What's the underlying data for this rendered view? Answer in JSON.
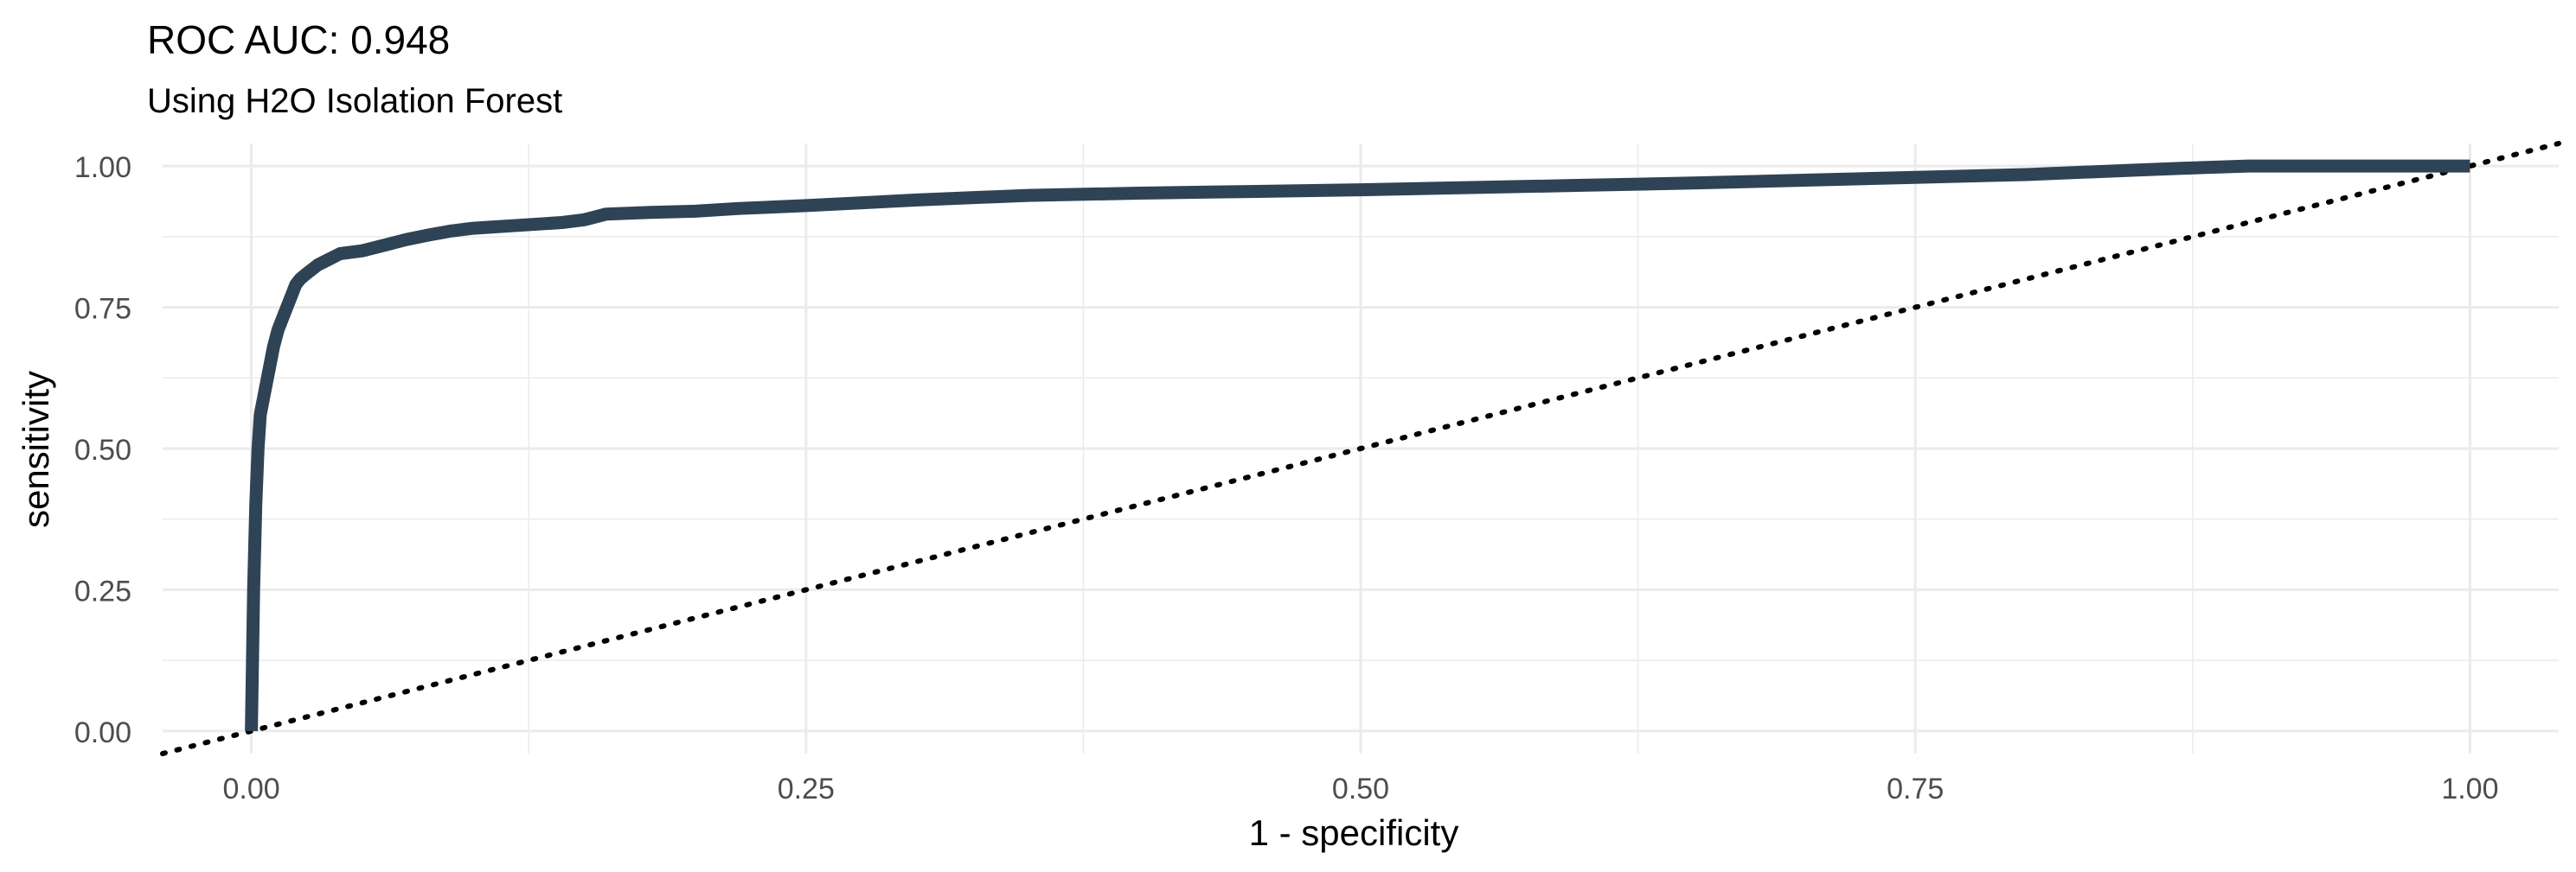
{
  "chart_data": {
    "type": "line",
    "title": "ROC AUC: 0.948",
    "subtitle": "Using H2O Isolation Forest",
    "xlabel": "1 - specificity",
    "ylabel": "sensitivity",
    "xlim": [
      -0.04,
      1.04
    ],
    "ylim": [
      -0.04,
      1.04
    ],
    "x_ticks": [
      0,
      0.25,
      0.5,
      0.75,
      1
    ],
    "y_ticks": [
      0,
      0.25,
      0.5,
      0.75,
      1
    ],
    "x_tick_labels": [
      "0.00",
      "0.25",
      "0.50",
      "0.75",
      "1.00"
    ],
    "y_tick_labels": [
      "0.00",
      "0.25",
      "0.50",
      "0.75",
      "1.00"
    ],
    "grid": true,
    "legend": "none",
    "colors": {
      "curve": "#2f4356",
      "reference": "#000000",
      "grid": "#ebebeb",
      "tick_label": "#4d4d4d"
    },
    "series": [
      {
        "x": [
          0.0,
          0.001,
          0.002,
          0.003,
          0.004,
          0.006,
          0.008,
          0.01,
          0.012,
          0.014,
          0.016,
          0.018,
          0.02,
          0.022,
          0.025,
          0.03,
          0.035,
          0.04,
          0.05,
          0.06,
          0.07,
          0.08,
          0.09,
          0.1,
          0.12,
          0.14,
          0.15,
          0.16,
          0.18,
          0.2,
          0.22,
          0.25,
          0.3,
          0.35,
          0.4,
          0.45,
          0.5,
          0.55,
          0.6,
          0.65,
          0.7,
          0.75,
          0.8,
          0.85,
          0.87,
          0.9,
          0.95,
          1.0
        ],
        "y": [
          0.0,
          0.25,
          0.4,
          0.5,
          0.56,
          0.6,
          0.64,
          0.68,
          0.71,
          0.73,
          0.75,
          0.77,
          0.79,
          0.8,
          0.81,
          0.825,
          0.835,
          0.845,
          0.85,
          0.86,
          0.87,
          0.878,
          0.885,
          0.89,
          0.895,
          0.9,
          0.905,
          0.915,
          0.918,
          0.92,
          0.925,
          0.93,
          0.94,
          0.948,
          0.952,
          0.955,
          0.958,
          0.962,
          0.966,
          0.97,
          0.975,
          0.98,
          0.985,
          0.993,
          0.996,
          1.0,
          1.0,
          1.0
        ]
      },
      {
        "x": [
          -0.04,
          1.04
        ],
        "y": [
          -0.04,
          1.04
        ]
      }
    ]
  }
}
